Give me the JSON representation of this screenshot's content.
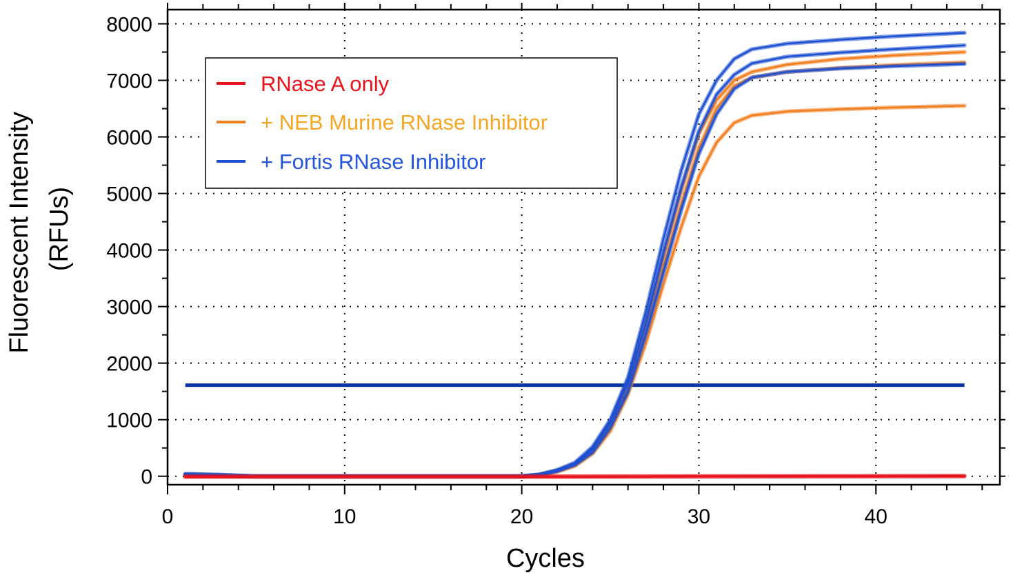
{
  "chart_data": {
    "type": "line",
    "xlabel": "Cycles",
    "ylabel_lines": [
      "Fluorescent Intensity",
      "(RFUs)"
    ],
    "xlim": [
      0,
      47
    ],
    "ylim": [
      -150,
      8250
    ],
    "x_ticks": [
      0,
      10,
      20,
      30,
      40
    ],
    "y_ticks": [
      0,
      1000,
      2000,
      3000,
      4000,
      5000,
      6000,
      7000,
      8000
    ],
    "grid": true,
    "legend_position": "upper-left",
    "threshold": {
      "value": 1610,
      "x_range": [
        1,
        45
      ],
      "color": "#0a33a8"
    },
    "series": [
      {
        "name": "RNase A only",
        "color": "#e8121b",
        "legend_color": "#e8121b",
        "curves": [
          {
            "x": [
              1,
              20,
              45
            ],
            "y": [
              -10,
              -10,
              0
            ]
          },
          {
            "x": [
              1,
              20,
              45
            ],
            "y": [
              -5,
              -5,
              5
            ]
          }
        ]
      },
      {
        "name": "+ NEB Murine RNase Inhibitor",
        "color": "#f07d1e",
        "legend_color": "#f5a623",
        "curves": [
          {
            "x": [
              1,
              3,
              5,
              10,
              15,
              20,
              21,
              22,
              23,
              24,
              25,
              26,
              27,
              28,
              29,
              30,
              31,
              32,
              33,
              35,
              38,
              41,
              45
            ],
            "y": [
              30,
              20,
              0,
              0,
              0,
              0,
              30,
              100,
              220,
              480,
              950,
              1650,
              2700,
              3900,
              5050,
              6050,
              6650,
              7000,
              7150,
              7280,
              7380,
              7440,
              7500
            ]
          },
          {
            "x": [
              1,
              3,
              5,
              10,
              15,
              20,
              21,
              22,
              23,
              24,
              25,
              26,
              27,
              28,
              29,
              30,
              31,
              32,
              33,
              35,
              38,
              41,
              45
            ],
            "y": [
              20,
              15,
              0,
              0,
              0,
              0,
              25,
              90,
              200,
              440,
              880,
              1550,
              2550,
              3700,
              4800,
              5800,
              6500,
              6900,
              7050,
              7150,
              7220,
              7270,
              7320
            ]
          },
          {
            "x": [
              1,
              3,
              5,
              10,
              15,
              20,
              21,
              22,
              23,
              24,
              25,
              26,
              27,
              28,
              29,
              30,
              31,
              32,
              33,
              35,
              38,
              41,
              45
            ],
            "y": [
              10,
              10,
              0,
              0,
              0,
              0,
              20,
              80,
              180,
              400,
              800,
              1450,
              2350,
              3400,
              4400,
              5300,
              5900,
              6250,
              6380,
              6450,
              6490,
              6520,
              6550
            ]
          }
        ]
      },
      {
        "name": "+ Fortis RNase Inhibitor",
        "color": "#1d4fd1",
        "legend_color": "#2455e0",
        "curves": [
          {
            "x": [
              1,
              3,
              5,
              10,
              15,
              20,
              21,
              22,
              23,
              24,
              25,
              26,
              27,
              28,
              29,
              30,
              31,
              32,
              33,
              35,
              38,
              41,
              45
            ],
            "y": [
              40,
              25,
              0,
              0,
              0,
              0,
              30,
              110,
              240,
              520,
              1000,
              1750,
              2900,
              4200,
              5400,
              6400,
              7000,
              7380,
              7550,
              7650,
              7720,
              7780,
              7840
            ]
          },
          {
            "x": [
              1,
              3,
              5,
              10,
              15,
              20,
              21,
              22,
              23,
              24,
              25,
              26,
              27,
              28,
              29,
              30,
              31,
              32,
              33,
              35,
              38,
              41,
              45
            ],
            "y": [
              35,
              20,
              0,
              0,
              0,
              0,
              28,
              100,
              220,
              480,
              950,
              1650,
              2700,
              3950,
              5100,
              6100,
              6750,
              7100,
              7300,
              7420,
              7490,
              7550,
              7620
            ]
          },
          {
            "x": [
              1,
              3,
              5,
              10,
              15,
              20,
              21,
              22,
              23,
              24,
              25,
              26,
              27,
              28,
              29,
              30,
              31,
              32,
              33,
              35,
              38,
              41,
              45
            ],
            "y": [
              25,
              15,
              0,
              0,
              0,
              0,
              25,
              90,
              200,
              420,
              860,
              1500,
              2500,
              3600,
              4700,
              5700,
              6400,
              6850,
              7050,
              7150,
              7210,
              7250,
              7290
            ]
          }
        ]
      }
    ]
  }
}
